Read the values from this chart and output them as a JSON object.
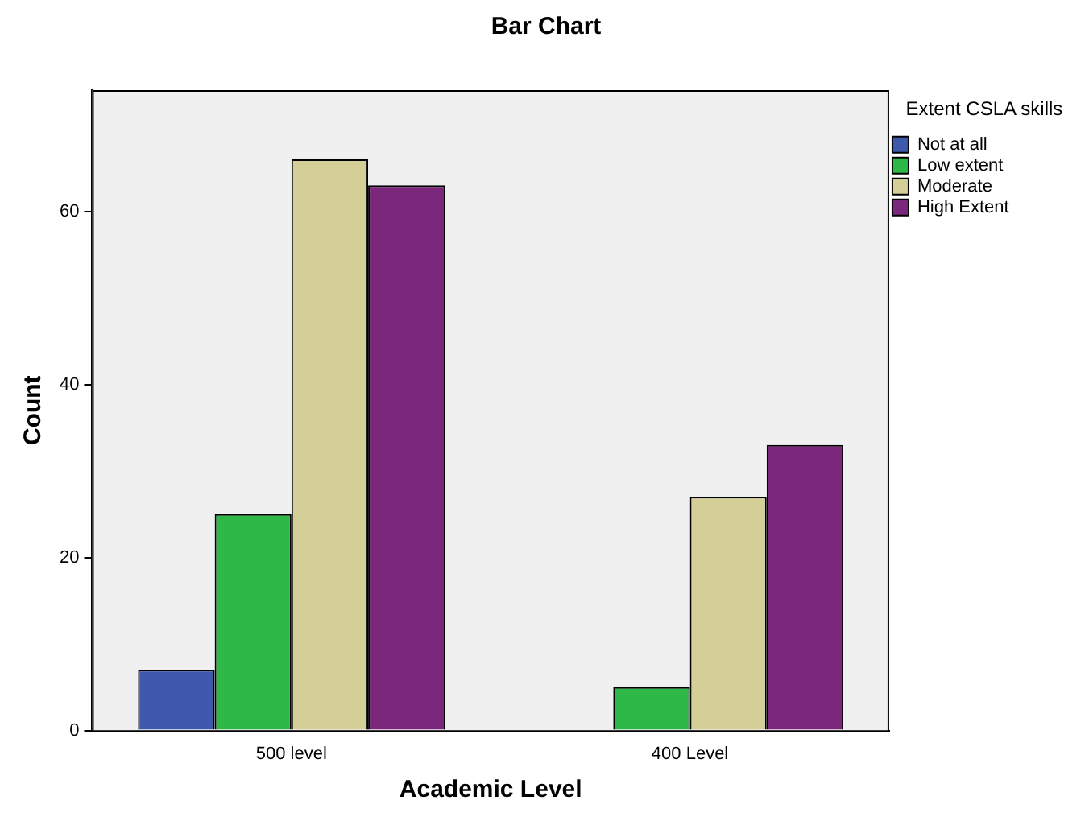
{
  "chart_data": {
    "type": "bar",
    "title": "Bar Chart",
    "xlabel": "Academic Level",
    "ylabel": "Count",
    "legend_title": "Extent CSLA skills",
    "categories": [
      "500 level",
      "400 Level"
    ],
    "series": [
      {
        "name": "Not at all",
        "color": "#3e58ac",
        "values": [
          7,
          null
        ]
      },
      {
        "name": "Low extent",
        "color": "#2eb848",
        "values": [
          25,
          5
        ]
      },
      {
        "name": "Moderate",
        "color": "#d4cf97",
        "values": [
          66,
          27
        ]
      },
      {
        "name": "High Extent",
        "color": "#7b287c",
        "values": [
          63,
          33
        ]
      }
    ],
    "ylim": [
      0,
      74
    ],
    "yticks": [
      0,
      20,
      40,
      60
    ],
    "grid": false,
    "legend": "right"
  }
}
